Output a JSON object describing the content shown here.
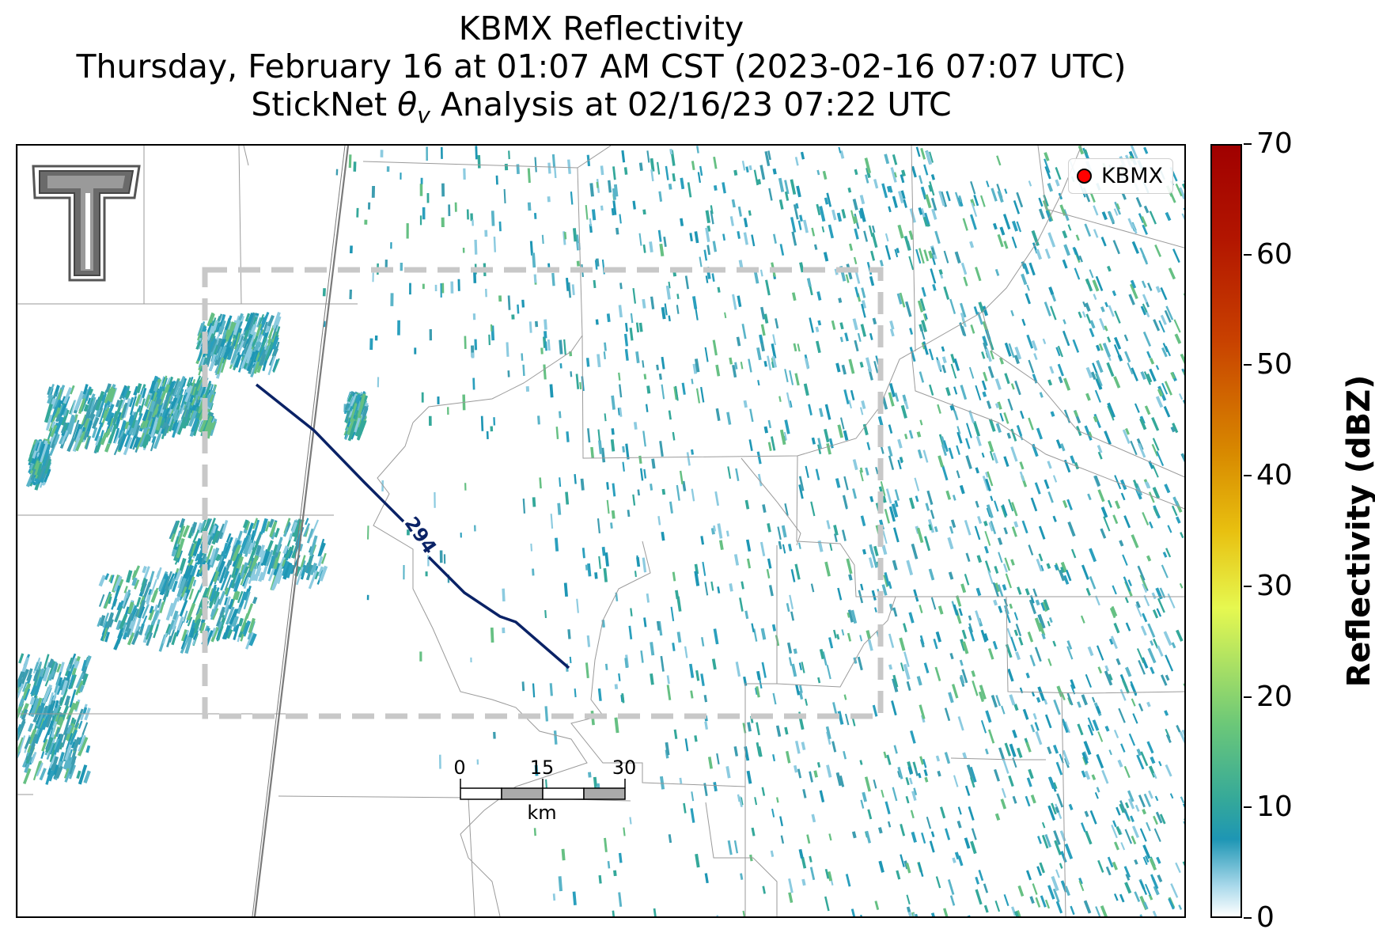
{
  "title": {
    "line1": "KBMX Reflectivity",
    "line2": "Thursday, February 16 at 01:07 AM CST (2023-02-16 07:07 UTC)",
    "line3_prefix": "StickNet ",
    "line3_symbol": "θ",
    "line3_subscript": "v",
    "line3_suffix": " Analysis at 02/16/23 07:22 UTC"
  },
  "legend": {
    "label": "KBMX",
    "marker_color": "#ff0000"
  },
  "contour": {
    "label": "294",
    "color": "#0a2266"
  },
  "colorbar": {
    "title": "Reflectivity (dBZ)",
    "min": 0,
    "max": 70,
    "ticks": [
      "0",
      "10",
      "20",
      "30",
      "40",
      "50",
      "60",
      "70"
    ],
    "colors": [
      "#ffffff",
      "#1e96b4",
      "#6cc878",
      "#e6f850",
      "#d88a00",
      "#a00000"
    ]
  },
  "scale_bar": {
    "labels": [
      "0",
      "15",
      "30"
    ],
    "unit": "km"
  },
  "analysis_box": {
    "style": "dashed",
    "color": "#c8c8c8"
  },
  "logo": {
    "name": "Texas Tech double T",
    "color": "#666666"
  },
  "echo_colors": [
    "#1e96b4",
    "#2a9fbd",
    "#34a89a",
    "#5ab4c8",
    "#8ccbe0",
    "#3d9db0",
    "#66c083"
  ]
}
